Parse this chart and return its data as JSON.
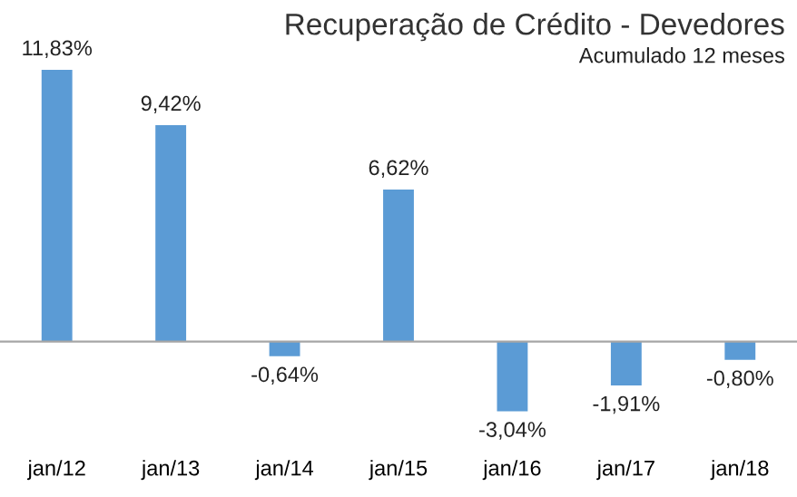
{
  "chart_data": {
    "type": "bar",
    "title": "Recuperação de Crédito - Devedores",
    "subtitle": "Acumulado 12 meses",
    "categories": [
      "jan/12",
      "jan/13",
      "jan/14",
      "jan/15",
      "jan/16",
      "jan/17",
      "jan/18"
    ],
    "values": [
      11.83,
      9.42,
      -0.64,
      6.62,
      -3.04,
      -1.91,
      -0.8
    ],
    "value_labels": [
      "11,83%",
      "9,42%",
      "-0,64%",
      "6,62%",
      "-3,04%",
      "-1,91%",
      "-0,80%"
    ],
    "color": "#5b9bd5",
    "grid": false,
    "legend": false
  }
}
